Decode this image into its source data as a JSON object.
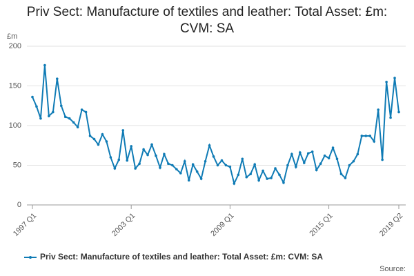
{
  "chart_data": {
    "type": "line",
    "title": "Priv Sect: Manufacture of textiles and leather: Total Asset: £m: CVM: SA",
    "y_label": "£m",
    "source": "Source:",
    "categories": [
      "1997 Q1",
      null,
      null,
      null,
      null,
      null,
      null,
      null,
      null,
      null,
      null,
      null,
      null,
      null,
      null,
      null,
      null,
      null,
      null,
      null,
      null,
      null,
      null,
      null,
      "2003 Q1",
      null,
      null,
      null,
      null,
      null,
      null,
      null,
      null,
      null,
      null,
      null,
      null,
      null,
      null,
      null,
      null,
      null,
      null,
      null,
      null,
      null,
      null,
      null,
      "2009 Q1",
      null,
      null,
      null,
      null,
      null,
      null,
      null,
      null,
      null,
      null,
      null,
      null,
      null,
      null,
      null,
      null,
      null,
      null,
      null,
      null,
      null,
      null,
      null,
      "2015 Q1",
      null,
      null,
      null,
      null,
      null,
      null,
      null,
      null,
      null,
      null,
      null,
      null,
      null,
      null,
      null,
      null,
      "2019 Q2"
    ],
    "series": [
      {
        "name": "Priv Sect: Manufacture of textiles and leather: Total Asset: £m: CVM: SA",
        "color": "#0f7bb5",
        "values": [
          136,
          124,
          109,
          176,
          112,
          117,
          159,
          125,
          111,
          109,
          104,
          98,
          120,
          117,
          87,
          83,
          76,
          89,
          80,
          60,
          46,
          57,
          94,
          56,
          74,
          46,
          52,
          70,
          63,
          76,
          62,
          47,
          64,
          52,
          50,
          45,
          40,
          55,
          31,
          51,
          42,
          33,
          55,
          75,
          61,
          50,
          56,
          50,
          48,
          27,
          38,
          58,
          35,
          39,
          51,
          31,
          43,
          33,
          34,
          46,
          38,
          28,
          50,
          64,
          48,
          66,
          53,
          65,
          67,
          44,
          52,
          62,
          59,
          72,
          58,
          39,
          34,
          50,
          55,
          64,
          87,
          87,
          87,
          80,
          120,
          57,
          155,
          110,
          160,
          117
        ]
      }
    ],
    "ylim": [
      0,
      200
    ],
    "yticks": [
      0,
      50,
      100,
      150,
      200
    ],
    "grid": true
  }
}
